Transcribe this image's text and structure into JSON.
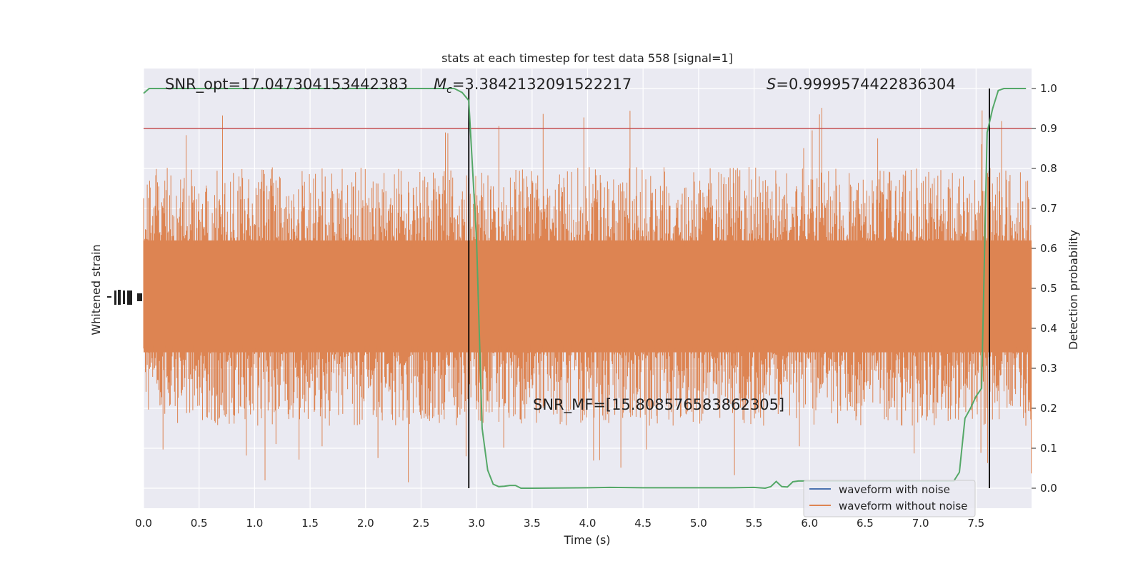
{
  "chart_data": {
    "type": "line",
    "title": "stats at each timestep for test data 558 [signal=1]",
    "xlabel": "Time (s)",
    "ylabel_left": "Whitened strain",
    "ylabel_right": "Detection probability",
    "xlim": [
      0.0,
      8.0
    ],
    "ylim_right": [
      -0.05,
      1.05
    ],
    "x_ticks": [
      "0.0",
      "0.5",
      "1.0",
      "1.5",
      "2.0",
      "2.5",
      "3.0",
      "3.5",
      "4.0",
      "4.5",
      "5.0",
      "5.5",
      "6.0",
      "6.5",
      "7.0",
      "7.5"
    ],
    "y_ticks_right": [
      "0.0",
      "0.1",
      "0.2",
      "0.3",
      "0.4",
      "0.5",
      "0.6",
      "0.7",
      "0.8",
      "0.9",
      "1.0"
    ],
    "grid": true,
    "legend_position": "lower-right",
    "annotations": {
      "snr_opt": "SNR_opt=17.047304153442383",
      "mc_symbol": "M",
      "mc_subscript": "c",
      "mc_value": "=3.3842132091522217",
      "s_symbol": "S",
      "s_value": "=0.9999574422836304",
      "snr_mf": "SNR_MF=[15.808576583862305]"
    },
    "series": [
      {
        "name": "waveform with noise",
        "color": "#4c72b0"
      },
      {
        "name": "waveform without noise",
        "color": "#dd8452"
      }
    ],
    "threshold": {
      "y": 0.9,
      "color": "#c44e52"
    },
    "vlines": {
      "x": [
        2.93,
        7.62
      ],
      "color": "#000000"
    },
    "strain_band": {
      "center": 0.48,
      "core_half_width": 0.14,
      "noise_half_width": 0.27,
      "max_spike": 0.48,
      "color": "#dd8452"
    },
    "probability": {
      "color": "#55a868",
      "x": [
        0.0,
        0.05,
        0.1,
        2.7,
        2.8,
        2.87,
        2.93,
        3.0,
        3.05,
        3.1,
        3.15,
        3.2,
        3.25,
        3.3,
        3.35,
        3.4,
        3.5,
        4.0,
        4.2,
        4.5,
        5.0,
        5.3,
        5.5,
        5.6,
        5.65,
        5.7,
        5.75,
        5.8,
        5.85,
        5.9,
        6.0,
        6.5,
        7.0,
        7.3,
        7.35,
        7.4,
        7.45,
        7.5,
        7.55,
        7.6,
        7.65,
        7.7,
        7.75,
        7.8,
        7.9,
        7.95
      ],
      "y": [
        0.988,
        1.0,
        1.0,
        1.0,
        1.0,
        0.99,
        0.97,
        0.62,
        0.15,
        0.045,
        0.01,
        0.004,
        0.005,
        0.007,
        0.007,
        0.0,
        0.0,
        0.001,
        0.002,
        0.001,
        0.001,
        0.001,
        0.002,
        0.0,
        0.004,
        0.017,
        0.004,
        0.003,
        0.016,
        0.018,
        0.018,
        0.018,
        0.018,
        0.018,
        0.04,
        0.175,
        0.2,
        0.23,
        0.25,
        0.89,
        0.95,
        0.995,
        1.0,
        1.0,
        1.0,
        1.0
      ]
    }
  }
}
